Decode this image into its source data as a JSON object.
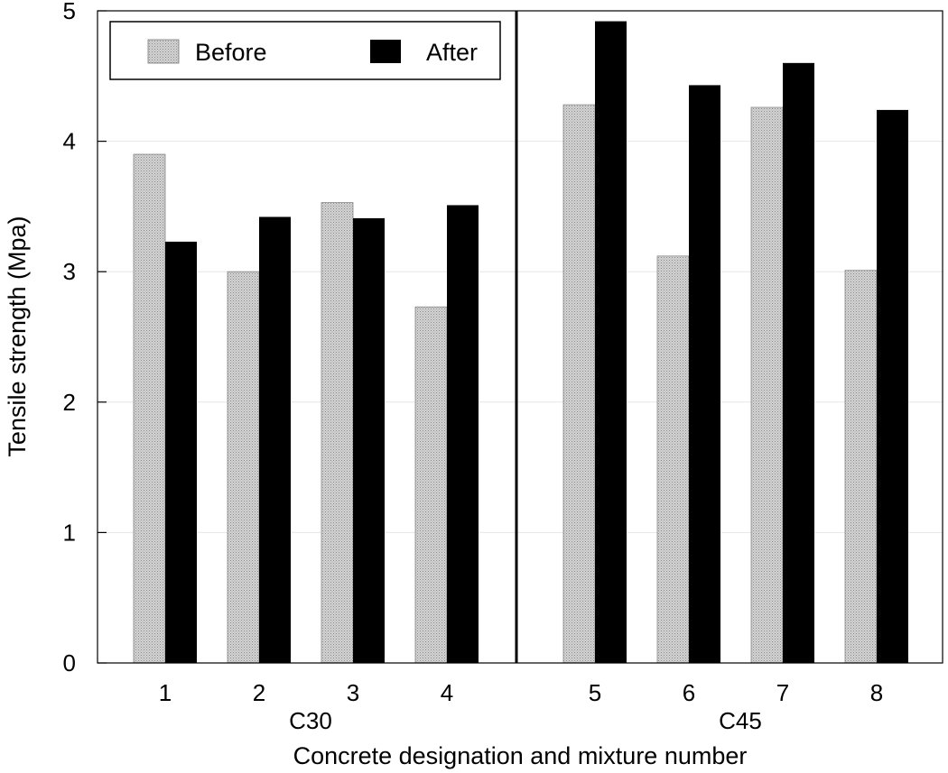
{
  "chart_data": {
    "type": "bar",
    "categories": [
      "1",
      "2",
      "3",
      "4",
      "5",
      "6",
      "7",
      "8"
    ],
    "groups": [
      {
        "label": "C30",
        "categories": [
          "1",
          "2",
          "3",
          "4"
        ]
      },
      {
        "label": "C45",
        "categories": [
          "5",
          "6",
          "7",
          "8"
        ]
      }
    ],
    "series": [
      {
        "name": "Before",
        "values": [
          3.9,
          3.0,
          3.53,
          2.73,
          4.28,
          3.12,
          4.26,
          3.01
        ],
        "pattern": "gray-stipple"
      },
      {
        "name": "After",
        "values": [
          3.23,
          3.42,
          3.41,
          3.51,
          4.92,
          4.43,
          4.6,
          4.24
        ],
        "color": "#000000"
      }
    ],
    "xlabel": "Concrete designation and mixture number",
    "ylabel": "Tensile strength (Mpa)",
    "ylim": [
      0,
      5
    ],
    "yticks": [
      "0",
      "1",
      "2",
      "3",
      "4",
      "5"
    ],
    "grid": true,
    "legend_position": "top-left",
    "group_separator": true
  }
}
